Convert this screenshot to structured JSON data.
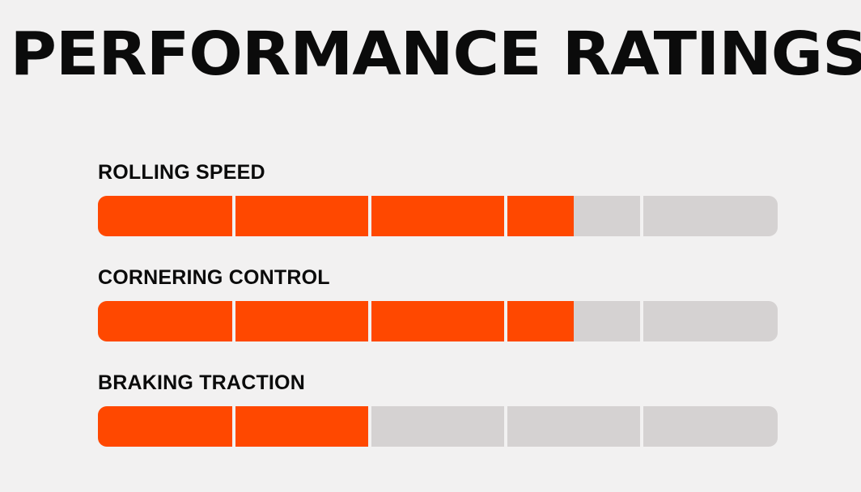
{
  "title": "PERFORMANCE RATINGS",
  "colors": {
    "background": "#f2f1f1",
    "fill": "#ff4800",
    "track": "#d5d2d2",
    "text": "#0b0b0b"
  },
  "segments_per_bar": 5,
  "ratings": [
    {
      "label": "ROLLING SPEED",
      "value": 3.5,
      "max": 5
    },
    {
      "label": "CORNERING CONTROL",
      "value": 3.5,
      "max": 5
    },
    {
      "label": "BRAKING TRACTION",
      "value": 2,
      "max": 5
    }
  ]
}
